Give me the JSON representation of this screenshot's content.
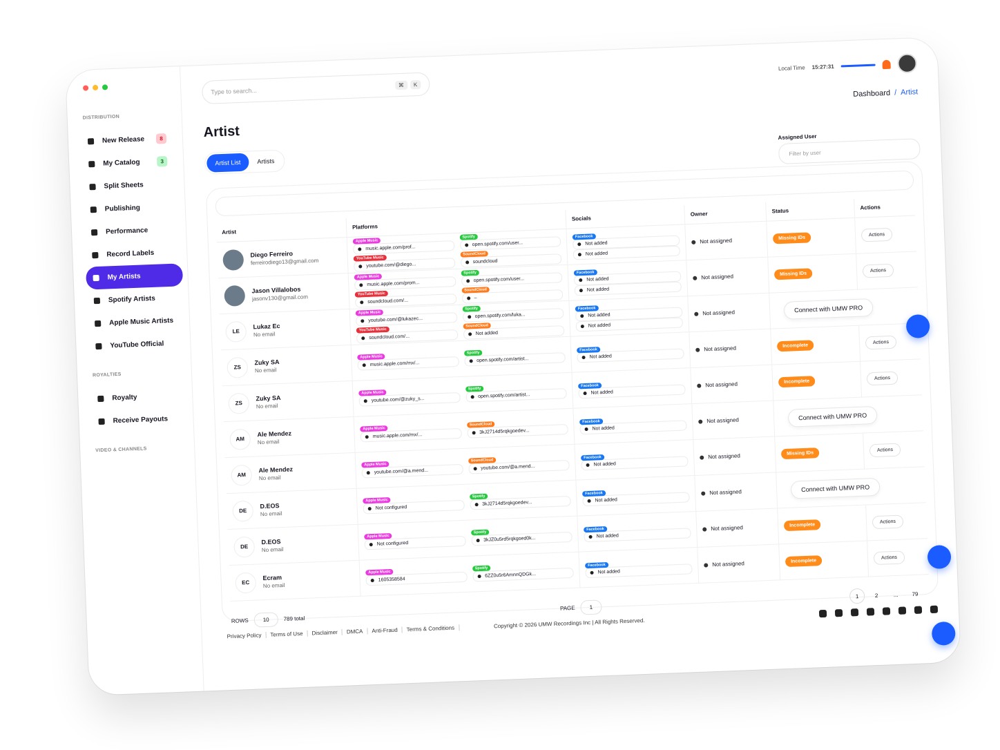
{
  "sidebar": {
    "sections": [
      {
        "title": "DISTRIBUTION",
        "items": [
          {
            "label": "New Release",
            "badge": "8"
          },
          {
            "label": "My Catalog",
            "badge": "3"
          },
          {
            "label": "Split Sheets"
          },
          {
            "label": "Publishing"
          },
          {
            "label": "Performance"
          },
          {
            "label": "Record Labels"
          },
          {
            "label": "My Artists",
            "active": true
          },
          {
            "label": "Spotify Artists"
          },
          {
            "label": "Apple Music Artists"
          },
          {
            "label": "YouTube Official"
          }
        ]
      },
      {
        "title": "ROYALTIES",
        "items": [
          {
            "label": "Royalty"
          },
          {
            "label": "Receive Payouts"
          }
        ]
      },
      {
        "title": "VIDEO & CHANNELS",
        "items": []
      }
    ]
  },
  "topbar": {
    "search_placeholder": "Type to search...",
    "shortcut": [
      "⌘",
      "K"
    ],
    "local_time_label": "Local Time",
    "local_time": "15:27:31"
  },
  "breadcrumb": {
    "items": [
      "Dashboard",
      "Artist"
    ],
    "separator": "/"
  },
  "page": {
    "title": "Artist",
    "tabs": [
      {
        "label": "Artist List",
        "active": true
      },
      {
        "label": "Artists"
      }
    ]
  },
  "filter": {
    "label": "Assigned User",
    "placeholder": "Filter by user"
  },
  "table": {
    "columns": [
      "Artist",
      "Platforms",
      "Socials",
      "Owner",
      "Status",
      "Actions"
    ],
    "tag_colors": {
      "Apple Music": "#ea3be0",
      "Spotify": "#27c93f",
      "YouTube Music": "#e8303a",
      "SoundCloud": "#ff7a1a",
      "Facebook": "#1877f2"
    },
    "status_color": "#ff8c1a",
    "rows": [
      {
        "avatar": true,
        "name": "Diego Ferreiro",
        "email": "ferreirodiego13@gmail.com",
        "platforms": [
          {
            "tag": "Apple Music",
            "value": "music.apple.com/prof..."
          },
          {
            "tag": "Spotify",
            "value": "open.spotify.com/user..."
          },
          {
            "tag": "YouTube Music",
            "value": "youtube.com/@diego..."
          },
          {
            "tag": "SoundCloud",
            "value": "soundcloud"
          }
        ],
        "socials": {
          "tag": "Facebook",
          "items": [
            "Not added",
            "Not added"
          ]
        },
        "owner": "Not assigned",
        "status": "Missing IDs",
        "action": "Actions"
      },
      {
        "avatar": true,
        "name": "Jason Villalobos",
        "email": "jasonv130@gmail.com",
        "platforms": [
          {
            "tag": "Apple Music",
            "value": "music.apple.com/prom..."
          },
          {
            "tag": "Spotify",
            "value": "open.spotify.com/user..."
          },
          {
            "tag": "YouTube Music",
            "value": "soundcloud.com/..."
          },
          {
            "tag": "SoundCloud",
            "value": "–"
          }
        ],
        "socials": {
          "tag": "Facebook",
          "items": [
            "Not added",
            "Not added"
          ]
        },
        "owner": "Not assigned",
        "status": "Missing IDs",
        "action": "Actions"
      },
      {
        "initials": "LE",
        "name": "Lukaz Ec",
        "email": "No email",
        "platforms": [
          {
            "tag": "Apple Music",
            "value": "youtube.com/@lukazec..."
          },
          {
            "tag": "Spotify",
            "value": "open.spotify.com/luka..."
          },
          {
            "tag": "YouTube Music",
            "value": "soundcloud.com/..."
          },
          {
            "tag": "SoundCloud",
            "value": "Not added"
          }
        ],
        "socials": {
          "tag": "Facebook",
          "items": [
            "Not added",
            "Not added"
          ]
        },
        "owner": "Not assigned",
        "promo": "Connect with UMW PRO"
      },
      {
        "initials": "ZS",
        "name": "Zuky SA",
        "email": "No email",
        "platforms": [
          {
            "tag": "Apple Music",
            "value": "music.apple.com/mx/..."
          },
          {
            "tag": "Spotify",
            "value": "open.spotify.com/artist..."
          }
        ],
        "socials": {
          "tag": "Facebook",
          "items": [
            "Not added"
          ]
        },
        "owner": "Not assigned",
        "status": "Incomplete",
        "action": "Actions"
      },
      {
        "initials": "ZS",
        "name": "Zuky SA",
        "email": "No email",
        "platforms": [
          {
            "tag": "Apple Music",
            "value": "youtube.com/@zuky_s..."
          },
          {
            "tag": "Spotify",
            "value": "open.spotify.com/artist..."
          }
        ],
        "socials": {
          "tag": "Facebook",
          "items": [
            "Not added"
          ]
        },
        "owner": "Not assigned",
        "status": "Incomplete",
        "action": "Actions"
      },
      {
        "initials": "AM",
        "name": "Ale Mendez",
        "email": "No email",
        "platforms": [
          {
            "tag": "Apple Music",
            "value": "music.apple.com/mx/..."
          },
          {
            "tag": "SoundCloud",
            "value": "3kJ2714d5rqkgoedev..."
          }
        ],
        "socials": {
          "tag": "Facebook",
          "items": [
            "Not added"
          ]
        },
        "owner": "Not assigned",
        "promo": "Connect with UMW PRO"
      },
      {
        "initials": "AM",
        "name": "Ale Mendez",
        "email": "No email",
        "platforms": [
          {
            "tag": "Apple Music",
            "value": "youtube.com/@a.mend..."
          },
          {
            "tag": "SoundCloud",
            "value": "youtube.com/@a.mend..."
          }
        ],
        "socials": {
          "tag": "Facebook",
          "items": [
            "Not added"
          ]
        },
        "owner": "Not assigned",
        "status": "Missing IDs",
        "action": "Actions"
      },
      {
        "initials": "DE",
        "name": "D.EOS",
        "email": "No email",
        "platforms": [
          {
            "tag": "Apple Music",
            "value": "Not configured"
          },
          {
            "tag": "Spotify",
            "value": "3kJ2714d5rqkgoedev..."
          }
        ],
        "socials": {
          "tag": "Facebook",
          "items": [
            "Not added"
          ]
        },
        "owner": "Not assigned",
        "promo": "Connect with UMW PRO"
      },
      {
        "initials": "DE",
        "name": "D.EOS",
        "email": "No email",
        "platforms": [
          {
            "tag": "Apple Music",
            "value": "Not configured"
          },
          {
            "tag": "Spotify",
            "value": "3kJZ0u5rd5rqkgoed0k..."
          }
        ],
        "socials": {
          "tag": "Facebook",
          "items": [
            "Not added"
          ]
        },
        "owner": "Not assigned",
        "status": "Incomplete",
        "action": "Actions"
      },
      {
        "initials": "EC",
        "name": "Ecram",
        "email": "No email",
        "platforms": [
          {
            "tag": "Apple Music",
            "value": "1605358584"
          },
          {
            "tag": "Spotify",
            "value": "6ZZ0u5r6AmnnQDGk..."
          }
        ],
        "socials": {
          "tag": "Facebook",
          "items": [
            "Not added"
          ]
        },
        "owner": "Not assigned",
        "status": "Incomplete",
        "action": "Actions"
      }
    ]
  },
  "pagination": {
    "page_label": "PAGE",
    "page_value": "1",
    "rows_label": "ROWS",
    "rows_value": "10",
    "total": "789 total",
    "pages": [
      "1",
      "2",
      "...",
      "79"
    ],
    "current": 0
  },
  "footer": {
    "links": [
      "Privacy Policy",
      "Terms of Use",
      "Disclaimer",
      "DMCA",
      "Anti-Fraud",
      "Terms & Conditions"
    ],
    "copyright": "Copyright © 2026 UMW Recordings Inc | All Rights Reserved."
  }
}
